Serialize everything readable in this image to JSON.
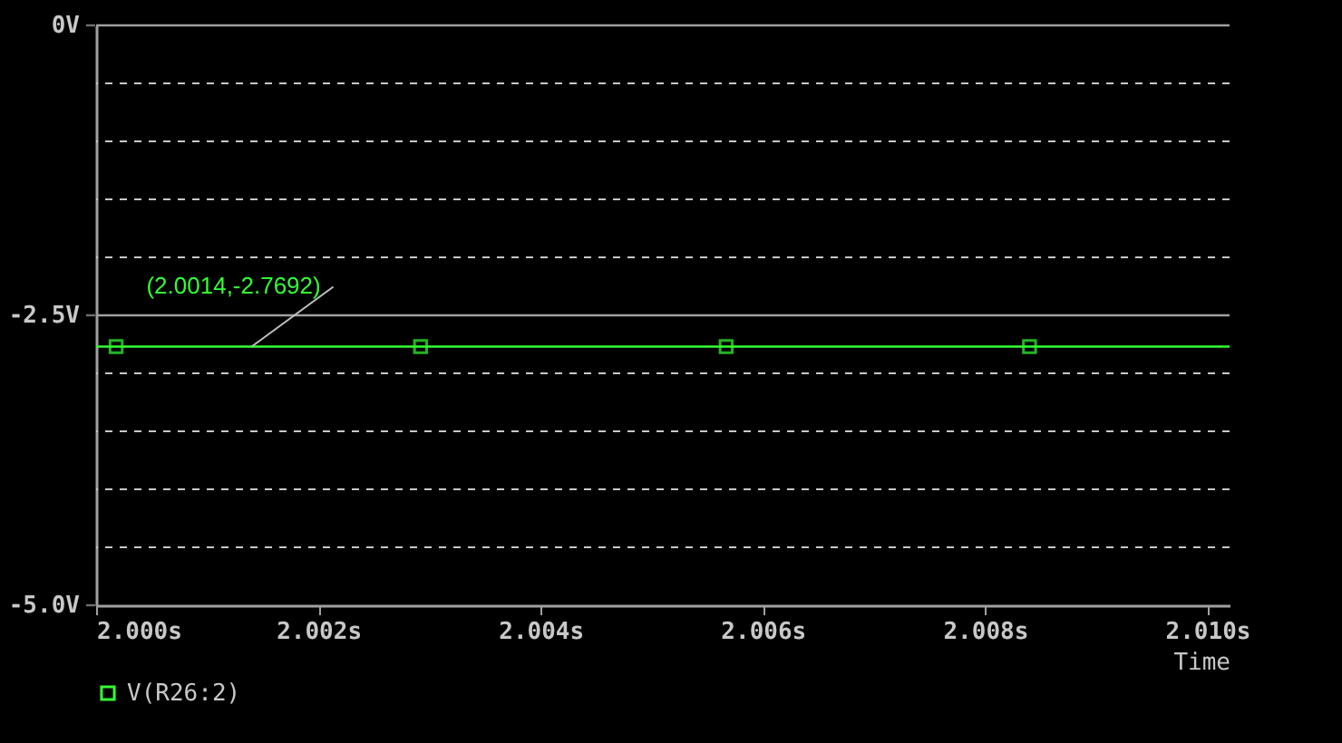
{
  "chart_data": {
    "type": "line",
    "xlabel": "Time",
    "xlim": [
      2.0,
      2.0102
    ],
    "ylim": [
      -5,
      0
    ],
    "xticks": [
      {
        "value": 2.0,
        "label": "2.000s"
      },
      {
        "value": 2.002,
        "label": "2.002s"
      },
      {
        "value": 2.004,
        "label": "2.004s"
      },
      {
        "value": 2.006,
        "label": "2.006s"
      },
      {
        "value": 2.008,
        "label": "2.008s"
      },
      {
        "value": 2.01,
        "label": "2.010s"
      }
    ],
    "yticks": [
      {
        "value": 0,
        "label": "0V"
      },
      {
        "value": -0.5,
        "label": null
      },
      {
        "value": -1,
        "label": null
      },
      {
        "value": -1.5,
        "label": null
      },
      {
        "value": -2,
        "label": null
      },
      {
        "value": -2.5,
        "label": "-2.5V"
      },
      {
        "value": -3,
        "label": null
      },
      {
        "value": -3.5,
        "label": null
      },
      {
        "value": -4,
        "label": null
      },
      {
        "value": -4.5,
        "label": null
      },
      {
        "value": -5,
        "label": "-5.0V"
      }
    ],
    "grid": "y",
    "ref_lines": [
      {
        "axis": "y",
        "value": -2.5,
        "color": "#a0a0a0"
      }
    ],
    "legend": "bottom left",
    "marker": "square",
    "series": [
      {
        "name": "V(R26:2)",
        "color": "#33ff33",
        "x": [
          2.0,
          2.00018,
          2.00292,
          2.00567,
          2.0084,
          2.0102
        ],
        "values": [
          -2.7692,
          -2.7692,
          -2.7692,
          -2.7692,
          -2.7692,
          -2.7692
        ]
      }
    ],
    "annotations": [
      {
        "text": "(2.0014,-2.7692)",
        "x": 2.0014,
        "y": -2.7692
      }
    ]
  }
}
